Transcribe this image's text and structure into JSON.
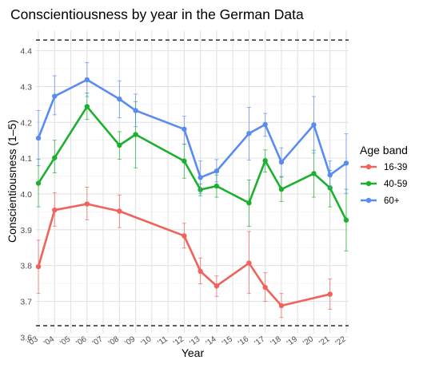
{
  "chart_data": {
    "type": "line",
    "title": "Conscientiousness by year in the German Data",
    "xlabel": "Year",
    "ylabel": "Conscientiousness (1–5)",
    "x_ticks": [
      2003,
      2004,
      2005,
      2006,
      2007,
      2008,
      2009,
      2010,
      2011,
      2012,
      2013,
      2014,
      2015,
      2016,
      2017,
      2018,
      2019,
      2020,
      2021,
      2022
    ],
    "x_tick_labels": [
      "'03",
      "'04",
      "'05",
      "'06",
      "'07",
      "'08",
      "'09",
      "'10",
      "'11",
      "'12",
      "'13",
      "'14",
      "'15",
      "'16",
      "'17",
      "'18",
      "'19",
      "'20",
      "'21",
      "'22"
    ],
    "xlim": [
      2002.85,
      2022.15
    ],
    "ylim": [
      3.612,
      4.457
    ],
    "y_ticks": [
      3.6,
      3.7,
      3.8,
      3.9,
      4.0,
      4.1,
      4.2,
      4.3,
      4.4
    ],
    "y_tick_labels": [
      "3.6",
      "3.7",
      "3.8",
      "3.9",
      "4.0",
      "4.1",
      "4.2",
      "4.3",
      "4.4"
    ],
    "reference_lines": [
      4.43,
      3.632
    ],
    "grid": true,
    "legend": {
      "title": "Age band",
      "position": "right"
    },
    "series": [
      {
        "name": "16-39",
        "color": "#F0625A",
        "x": [
          2003,
          2004,
          2006,
          2008,
          2012,
          2013,
          2014,
          2016,
          2017,
          2018,
          2021
        ],
        "y": [
          3.797,
          3.955,
          3.972,
          3.952,
          3.883,
          3.784,
          3.743,
          3.807,
          3.739,
          3.688,
          3.72
        ],
        "err_low": [
          3.722,
          3.91,
          3.928,
          3.906,
          3.849,
          3.749,
          3.714,
          3.722,
          3.7,
          3.655,
          3.678
        ],
        "err_high": [
          3.871,
          4.003,
          4.019,
          3.997,
          3.918,
          3.821,
          3.771,
          3.895,
          3.78,
          3.722,
          3.763
        ]
      },
      {
        "name": "40-59",
        "color": "#1DAF2F",
        "x": [
          2003,
          2004,
          2006,
          2008,
          2009,
          2012,
          2013,
          2014,
          2016,
          2017,
          2018,
          2020,
          2021,
          2022
        ],
        "y": [
          4.03,
          4.101,
          4.244,
          4.136,
          4.166,
          4.092,
          4.012,
          4.022,
          3.975,
          4.093,
          4.013,
          4.057,
          4.017,
          3.927
        ],
        "err_low": [
          3.964,
          4.059,
          4.208,
          4.097,
          4.073,
          4.044,
          3.995,
          3.991,
          3.91,
          4.061,
          3.979,
          3.991,
          3.964,
          3.841
        ],
        "err_high": [
          4.097,
          4.15,
          4.282,
          4.174,
          4.258,
          4.139,
          4.028,
          4.053,
          4.039,
          4.123,
          4.047,
          4.122,
          4.066,
          4.013
        ]
      },
      {
        "name": "60+",
        "color": "#5A8CF0",
        "x": [
          2003,
          2004,
          2006,
          2008,
          2009,
          2012,
          2013,
          2014,
          2016,
          2017,
          2018,
          2020,
          2021,
          2022
        ],
        "y": [
          4.156,
          4.273,
          4.319,
          4.265,
          4.233,
          4.181,
          4.046,
          4.064,
          4.169,
          4.194,
          4.089,
          4.193,
          4.053,
          4.086
        ],
        "err_low": [
          4.079,
          4.221,
          4.272,
          4.213,
          4.188,
          4.139,
          4.002,
          4.034,
          4.095,
          4.161,
          4.049,
          4.114,
          4.017,
          4.002
        ],
        "err_high": [
          4.233,
          4.33,
          4.367,
          4.316,
          4.279,
          4.217,
          4.092,
          4.096,
          4.242,
          4.225,
          4.129,
          4.272,
          4.092,
          4.168
        ]
      }
    ]
  }
}
